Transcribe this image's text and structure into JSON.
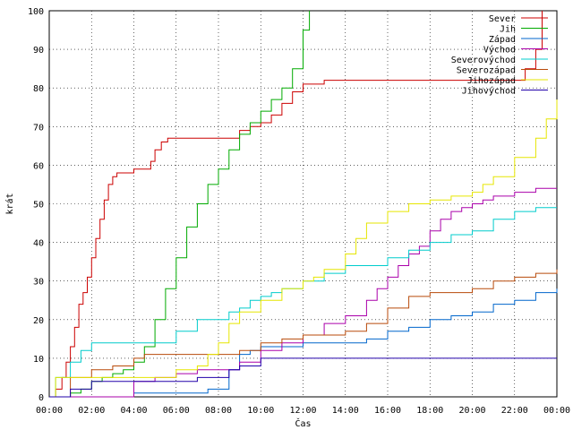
{
  "chart_data": {
    "type": "line",
    "title": "",
    "xlabel": "Čas",
    "ylabel": "krát",
    "xlim": [
      0,
      24
    ],
    "ylim": [
      0,
      100
    ],
    "x_tick_labels": [
      "00:00",
      "02:00",
      "04:00",
      "06:00",
      "08:00",
      "10:00",
      "12:00",
      "14:00",
      "16:00",
      "18:00",
      "20:00",
      "22:00",
      "00:00"
    ],
    "y_tick_labels": [
      "0",
      "10",
      "20",
      "30",
      "40",
      "50",
      "60",
      "70",
      "80",
      "90",
      "100"
    ],
    "grid": true,
    "legend_position": "top-right",
    "series": [
      {
        "name": "Sever",
        "color": "#cc0000",
        "x": [
          0,
          0.3,
          0.6,
          0.8,
          1.0,
          1.2,
          1.4,
          1.6,
          1.8,
          2.0,
          2.2,
          2.4,
          2.6,
          2.8,
          3.0,
          3.2,
          3.4,
          3.6,
          4.0,
          4.5,
          4.8,
          5.0,
          5.3,
          5.6,
          6.0,
          6.5,
          8.0,
          9.0,
          9.5,
          10.0,
          10.5,
          11.0,
          11.5,
          12.0,
          13,
          16,
          18,
          20,
          21,
          22,
          22.5,
          23.0,
          23.3
        ],
        "y": [
          0,
          2,
          5,
          9,
          13,
          18,
          24,
          27,
          31,
          36,
          41,
          46,
          51,
          55,
          57,
          58,
          58,
          58,
          59,
          59,
          61,
          64,
          66,
          67,
          67,
          67,
          67,
          69,
          70,
          71,
          73,
          76,
          79,
          81,
          82,
          82,
          82,
          82,
          82,
          82,
          85,
          90,
          100
        ]
      },
      {
        "name": "Jih",
        "color": "#00aa00",
        "x": [
          0,
          0.5,
          1,
          1.5,
          2,
          2.5,
          3,
          3.5,
          4,
          4.5,
          5.0,
          5.5,
          6.0,
          6.5,
          7.0,
          7.5,
          8.0,
          8.5,
          9.0,
          9.5,
          10.0,
          10.5,
          11.0,
          11.5,
          12.0,
          12.3
        ],
        "y": [
          0,
          0,
          1,
          2,
          4,
          5,
          6,
          7,
          9,
          13,
          20,
          28,
          36,
          44,
          50,
          55,
          59,
          64,
          68,
          71,
          74,
          77,
          80,
          85,
          95,
          100
        ]
      },
      {
        "name": "Západ",
        "color": "#0066cc",
        "x": [
          0,
          3.8,
          4.0,
          6,
          7.5,
          8.5,
          9.0,
          9.5,
          10,
          12,
          14,
          15,
          16,
          17,
          18,
          19,
          20,
          21,
          22,
          23,
          24
        ],
        "y": [
          0,
          0,
          1,
          1,
          2,
          7,
          11,
          12,
          13,
          14,
          14,
          15,
          17,
          18,
          20,
          21,
          22,
          24,
          25,
          27,
          28
        ]
      },
      {
        "name": "Východ",
        "color": "#aa00aa",
        "x": [
          0,
          3.5,
          4.0,
          5,
          6,
          7,
          8,
          9,
          10,
          11,
          12,
          13,
          14,
          15,
          15.5,
          16,
          16.5,
          17,
          17.5,
          18,
          18.5,
          19,
          19.5,
          20,
          20.5,
          21,
          22,
          23,
          24
        ],
        "y": [
          0,
          0,
          4,
          5,
          6,
          7,
          7,
          9,
          12,
          14,
          16,
          19,
          21,
          25,
          28,
          31,
          34,
          37,
          39,
          43,
          46,
          48,
          49,
          50,
          51,
          52,
          53,
          54,
          54
        ]
      },
      {
        "name": "Severovýchod",
        "color": "#00cccc",
        "x": [
          0,
          0.3,
          1,
          1.5,
          2,
          4,
          5,
          6,
          7,
          7.5,
          8,
          8.5,
          9,
          9.5,
          10,
          10.5,
          11,
          12,
          13,
          14,
          15,
          16,
          17,
          18,
          19,
          20,
          21,
          22,
          23,
          24
        ],
        "y": [
          0,
          5,
          9,
          12,
          14,
          14,
          14,
          17,
          20,
          20,
          20,
          22,
          23,
          25,
          26,
          27,
          28,
          30,
          32,
          34,
          34,
          36,
          38,
          40,
          42,
          43,
          46,
          48,
          49,
          49
        ]
      },
      {
        "name": "Severozápad",
        "color": "#b84a0a",
        "x": [
          0,
          0.5,
          1,
          2,
          3,
          4,
          4.5,
          5,
          6,
          7,
          8,
          9,
          10,
          11,
          12,
          13,
          14,
          15,
          16,
          17,
          18,
          19,
          20,
          21,
          22,
          23,
          24
        ],
        "y": [
          0,
          0,
          5,
          7,
          8,
          10,
          11,
          11,
          11,
          11,
          11,
          12,
          14,
          15,
          16,
          16,
          17,
          19,
          23,
          26,
          27,
          27,
          28,
          30,
          31,
          32,
          33
        ]
      },
      {
        "name": "Jihozápad",
        "color": "#e6e600",
        "x": [
          0,
          0.3,
          1,
          2,
          3,
          4,
          5,
          6,
          7,
          7.5,
          8,
          8.5,
          9,
          10,
          11,
          12,
          12.5,
          13,
          14,
          14.5,
          15,
          16,
          17,
          18,
          19,
          20,
          20.5,
          21,
          22,
          23,
          23.5,
          24
        ],
        "y": [
          0,
          5,
          5,
          5,
          5,
          5,
          5,
          7,
          8,
          11,
          14,
          19,
          22,
          25,
          28,
          30,
          31,
          33,
          37,
          41,
          45,
          48,
          50,
          51,
          52,
          53,
          55,
          57,
          62,
          67,
          72,
          77
        ]
      },
      {
        "name": "Jihovýchod",
        "color": "#2200aa",
        "x": [
          0,
          0.5,
          1,
          2,
          3,
          4,
          5,
          6,
          7,
          8,
          8.5,
          9,
          10,
          12,
          14,
          16,
          18,
          20,
          22,
          24
        ],
        "y": [
          0,
          0,
          2,
          4,
          4,
          4,
          4,
          4,
          5,
          5,
          7,
          8,
          10,
          10,
          10,
          10,
          10,
          10,
          10,
          10
        ]
      }
    ]
  }
}
